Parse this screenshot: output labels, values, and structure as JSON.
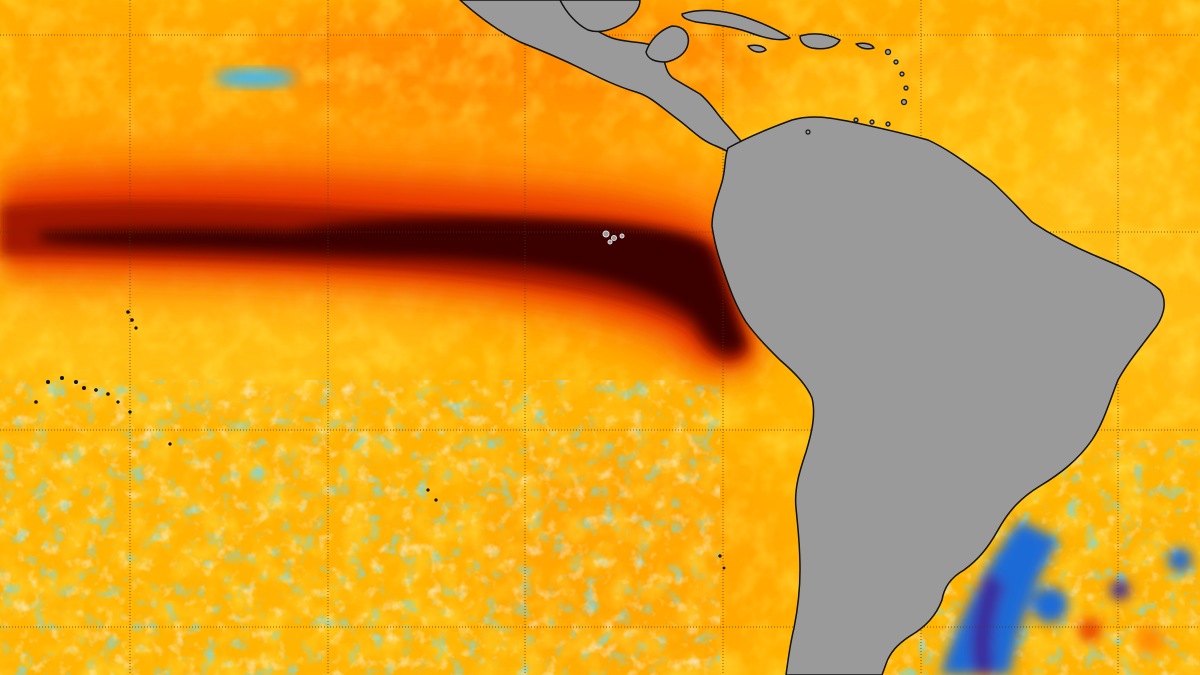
{
  "map": {
    "type": "sea-surface-temperature-anomaly",
    "projection": "equirectangular",
    "graticule": "on",
    "colors": {
      "ocean_base": "#ffb400",
      "warm_light": "#ffd21a",
      "warm_mid": "#ff9a00",
      "warm_orange": "#ff6a00",
      "hot_red": "#e32400",
      "hot_dark": "#8a1200",
      "extreme": "#3a0000",
      "cool_light": "#d9f4ff",
      "cool_cyan": "#29b6f6",
      "cool_blue": "#1e6bd6",
      "cold_deep": "#3a2a9e",
      "land": "#9a9a9a",
      "coastline": "#111111",
      "grid": "#4a3a1a"
    },
    "features": [
      {
        "name": "south-america",
        "kind": "continent"
      },
      {
        "name": "central-america",
        "kind": "landmass"
      },
      {
        "name": "caribbean-islands",
        "kind": "island-group"
      },
      {
        "name": "galapagos-islands",
        "kind": "island-group"
      },
      {
        "name": "pacific-islands",
        "kind": "island-group"
      },
      {
        "name": "equatorial-warm-tongue",
        "kind": "anomaly-band"
      },
      {
        "name": "south-atlantic-cool-patch",
        "kind": "anomaly-patch"
      },
      {
        "name": "south-pacific-cool-patches",
        "kind": "anomaly-patch"
      }
    ]
  }
}
